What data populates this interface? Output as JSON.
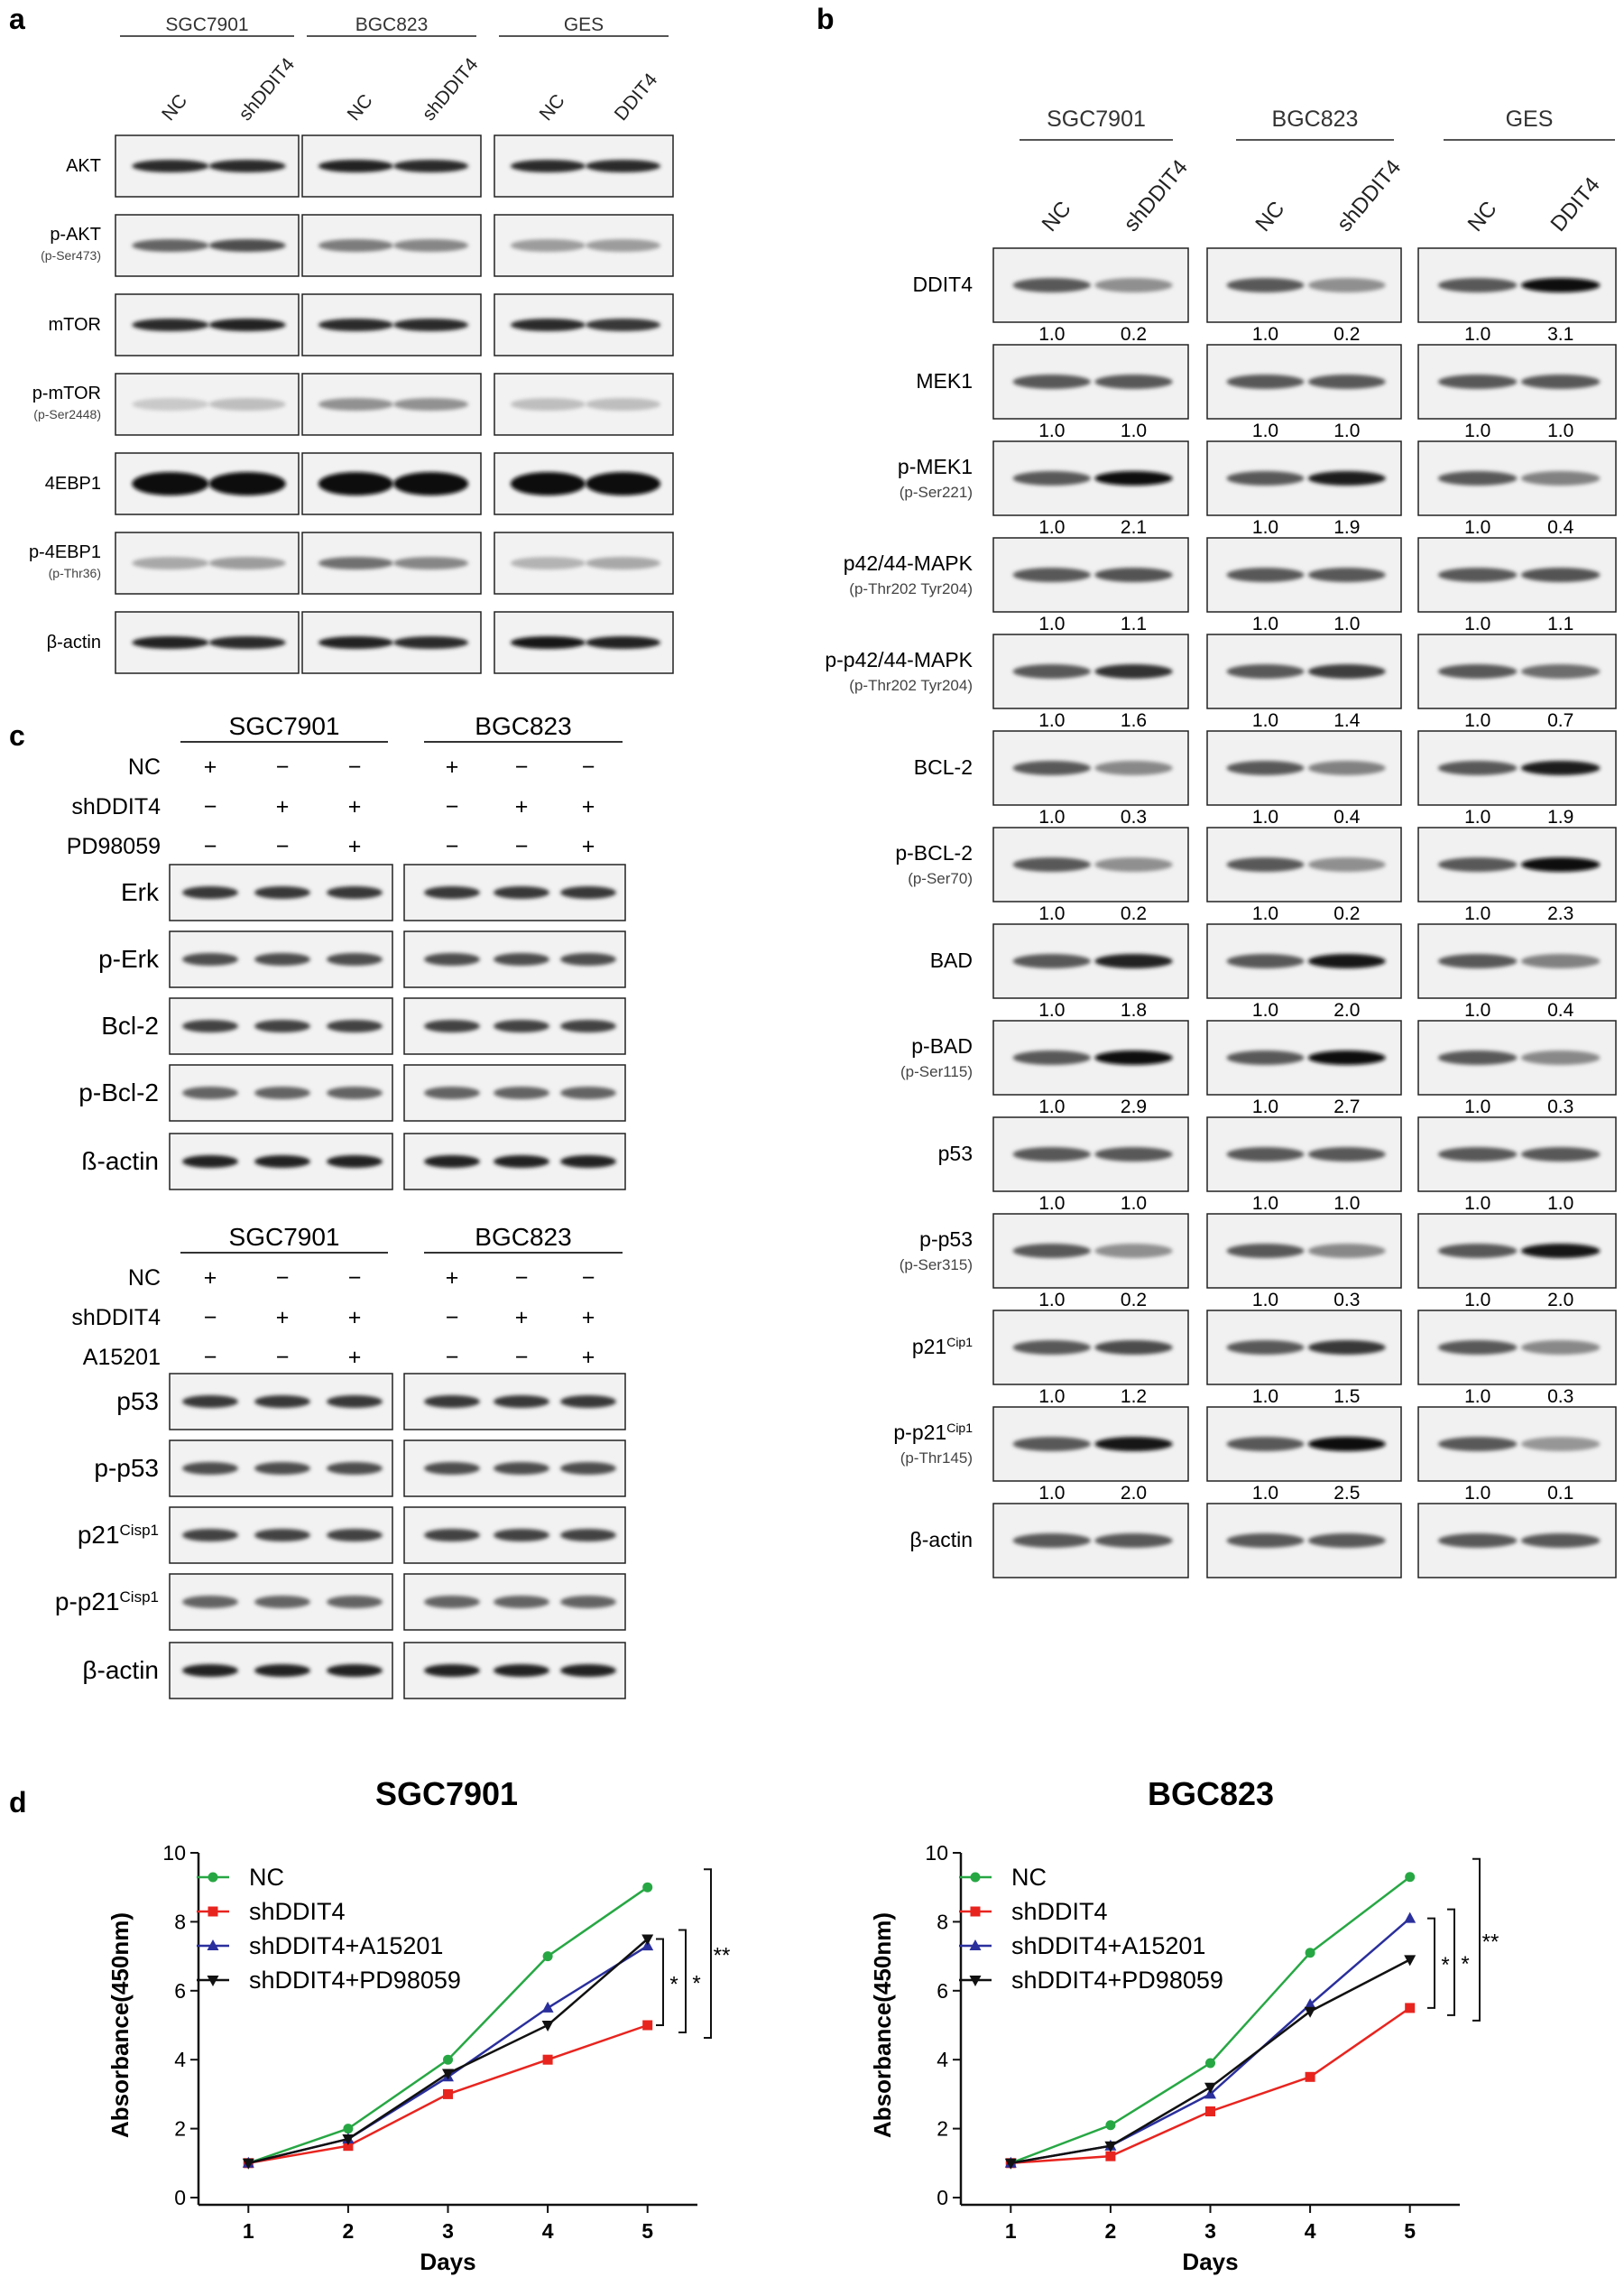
{
  "panel_a": {
    "letter": "a",
    "groups": [
      {
        "name": "SGC7901",
        "lanes": [
          "NC",
          "shDDIT4"
        ]
      },
      {
        "name": "BGC823",
        "lanes": [
          "NC",
          "shDDIT4"
        ]
      },
      {
        "name": "GES",
        "lanes": [
          "NC",
          "DDIT4"
        ]
      }
    ],
    "rows": [
      {
        "label": "AKT",
        "sub": ""
      },
      {
        "label": "p-AKT",
        "sub": "(p-Ser473)"
      },
      {
        "label": "mTOR",
        "sub": ""
      },
      {
        "label": "p-mTOR",
        "sub": "(p-Ser2448)"
      },
      {
        "label": "4EBP1",
        "sub": ""
      },
      {
        "label": "p-4EBP1",
        "sub": "(p-Thr36)"
      },
      {
        "label": "β-actin",
        "sub": ""
      }
    ]
  },
  "panel_b": {
    "letter": "b",
    "groups": [
      {
        "name": "SGC7901",
        "lanes": [
          "NC",
          "shDDIT4"
        ]
      },
      {
        "name": "BGC823",
        "lanes": [
          "NC",
          "shDDIT4"
        ]
      },
      {
        "name": "GES",
        "lanes": [
          "NC",
          "DDIT4"
        ]
      }
    ],
    "rows": [
      {
        "label": "DDIT4",
        "sup": "",
        "sub": "",
        "values": [
          "1.0",
          "0.2",
          "1.0",
          "0.2",
          "1.0",
          "3.1"
        ]
      },
      {
        "label": "MEK1",
        "sup": "",
        "sub": "",
        "values": [
          "1.0",
          "1.0",
          "1.0",
          "1.0",
          "1.0",
          "1.0"
        ]
      },
      {
        "label": "p-MEK1",
        "sup": "",
        "sub": "(p-Ser221)",
        "values": [
          "1.0",
          "2.1",
          "1.0",
          "1.9",
          "1.0",
          "0.4"
        ]
      },
      {
        "label": "p42/44-MAPK",
        "sup": "",
        "sub": "(p-Thr202 Tyr204)",
        "values": [
          "1.0",
          "1.1",
          "1.0",
          "1.0",
          "1.0",
          "1.1"
        ]
      },
      {
        "label": "p-p42/44-MAPK",
        "sup": "",
        "sub": "(p-Thr202 Tyr204)",
        "values": [
          "1.0",
          "1.6",
          "1.0",
          "1.4",
          "1.0",
          "0.7"
        ]
      },
      {
        "label": "BCL-2",
        "sup": "",
        "sub": "",
        "values": [
          "1.0",
          "0.3",
          "1.0",
          "0.4",
          "1.0",
          "1.9"
        ]
      },
      {
        "label": "p-BCL-2",
        "sup": "",
        "sub": "(p-Ser70)",
        "values": [
          "1.0",
          "0.2",
          "1.0",
          "0.2",
          "1.0",
          "2.3"
        ]
      },
      {
        "label": "BAD",
        "sup": "",
        "sub": "",
        "values": [
          "1.0",
          "1.8",
          "1.0",
          "2.0",
          "1.0",
          "0.4"
        ]
      },
      {
        "label": "p-BAD",
        "sup": "",
        "sub": "(p-Ser115)",
        "values": [
          "1.0",
          "2.9",
          "1.0",
          "2.7",
          "1.0",
          "0.3"
        ]
      },
      {
        "label": "p53",
        "sup": "",
        "sub": "",
        "values": [
          "1.0",
          "1.0",
          "1.0",
          "1.0",
          "1.0",
          "1.0"
        ]
      },
      {
        "label": "p-p53",
        "sup": "",
        "sub": "(p-Ser315)",
        "values": [
          "1.0",
          "0.2",
          "1.0",
          "0.3",
          "1.0",
          "2.0"
        ]
      },
      {
        "label": "p21",
        "sup": "Cip1",
        "sub": "",
        "values": [
          "1.0",
          "1.2",
          "1.0",
          "1.5",
          "1.0",
          "0.3"
        ]
      },
      {
        "label": "p-p21",
        "sup": "Cip1",
        "sub": "(p-Thr145)",
        "values": [
          "1.0",
          "2.0",
          "1.0",
          "2.5",
          "1.0",
          "0.1"
        ]
      },
      {
        "label": "β-actin",
        "sup": "",
        "sub": "",
        "values": []
      }
    ]
  },
  "panel_c": {
    "letter": "c",
    "top": {
      "groups": [
        "SGC7901",
        "BGC823"
      ],
      "treatments": [
        {
          "label": "NC",
          "signs": [
            "+",
            "−",
            "−",
            "+",
            "−",
            "−"
          ]
        },
        {
          "label": "shDDIT4",
          "signs": [
            "−",
            "+",
            "+",
            "−",
            "+",
            "+"
          ]
        },
        {
          "label": "PD98059",
          "signs": [
            "−",
            "−",
            "+",
            "−",
            "−",
            "+"
          ]
        }
      ],
      "rows": [
        {
          "label": "Erk",
          "sup": ""
        },
        {
          "label": "p-Erk",
          "sup": ""
        },
        {
          "label": "Bcl-2",
          "sup": ""
        },
        {
          "label": "p-Bcl-2",
          "sup": ""
        },
        {
          "label": "ß-actin",
          "sup": ""
        }
      ]
    },
    "bottom": {
      "groups": [
        "SGC7901",
        "BGC823"
      ],
      "treatments": [
        {
          "label": "NC",
          "signs": [
            "+",
            "−",
            "−",
            "+",
            "−",
            "−"
          ]
        },
        {
          "label": "shDDIT4",
          "signs": [
            "−",
            "+",
            "+",
            "−",
            "+",
            "+"
          ]
        },
        {
          "label": "A15201",
          "signs": [
            "−",
            "−",
            "+",
            "−",
            "−",
            "+"
          ]
        }
      ],
      "rows": [
        {
          "label": "p53",
          "sup": ""
        },
        {
          "label": "p-p53",
          "sup": ""
        },
        {
          "label": "p21",
          "sup": "Cisp1"
        },
        {
          "label": "p-p21",
          "sup": "Cisp1"
        },
        {
          "label": "β-actin",
          "sup": ""
        }
      ]
    }
  },
  "panel_d": {
    "letter": "d",
    "colors": {
      "NC": "#27a744",
      "shDDIT4": "#e8241f",
      "A15201": "#2a2f9c",
      "PD98059": "#111111"
    }
  },
  "chart_data": [
    {
      "type": "line",
      "title": "SGC7901",
      "xlabel": "Days",
      "ylabel": "Absorbance(450nm)",
      "x": [
        1,
        2,
        3,
        4,
        5
      ],
      "xlim": [
        0.5,
        5.5
      ],
      "ylim": [
        0,
        10
      ],
      "yticks": [
        0,
        2,
        4,
        6,
        8,
        10
      ],
      "grid": false,
      "legend": "top-left",
      "series": [
        {
          "name": "NC",
          "marker": "circle",
          "values": [
            1.0,
            2.0,
            4.0,
            7.0,
            9.0
          ]
        },
        {
          "name": "shDDIT4",
          "marker": "square",
          "values": [
            1.0,
            1.5,
            3.0,
            4.0,
            5.0
          ]
        },
        {
          "name": "shDDIT4+A15201",
          "marker": "triangle-up",
          "values": [
            1.0,
            1.7,
            3.5,
            5.5,
            7.3
          ]
        },
        {
          "name": "shDDIT4+PD98059",
          "marker": "triangle-down",
          "values": [
            1.0,
            1.7,
            3.6,
            5.0,
            7.5
          ]
        }
      ],
      "annotations": [
        "*",
        "*",
        "**"
      ]
    },
    {
      "type": "line",
      "title": "BGC823",
      "xlabel": "Days",
      "ylabel": "Absorbance(450nm)",
      "x": [
        1,
        2,
        3,
        4,
        5
      ],
      "xlim": [
        0.5,
        5.5
      ],
      "ylim": [
        0,
        10
      ],
      "yticks": [
        0,
        2,
        4,
        6,
        8,
        10
      ],
      "grid": false,
      "legend": "top-left",
      "series": [
        {
          "name": "NC",
          "marker": "circle",
          "values": [
            1.0,
            2.1,
            3.9,
            7.1,
            9.3
          ]
        },
        {
          "name": "shDDIT4",
          "marker": "square",
          "values": [
            1.0,
            1.2,
            2.5,
            3.5,
            5.5
          ]
        },
        {
          "name": "shDDIT4+A15201",
          "marker": "triangle-up",
          "values": [
            1.0,
            1.5,
            3.0,
            5.6,
            8.1
          ]
        },
        {
          "name": "shDDIT4+PD98059",
          "marker": "triangle-down",
          "values": [
            1.0,
            1.5,
            3.2,
            5.4,
            6.9
          ]
        }
      ],
      "annotations": [
        "*",
        "*",
        "**"
      ]
    }
  ]
}
